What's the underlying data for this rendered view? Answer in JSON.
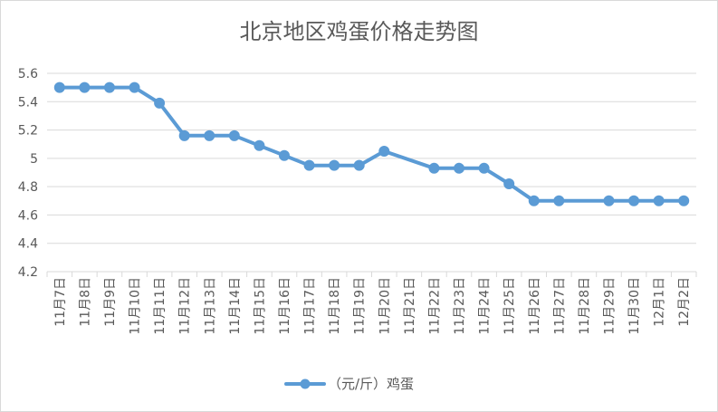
{
  "chart_data": {
    "type": "line",
    "title": "北京地区鸡蛋价格走势图",
    "xlabel": "",
    "ylabel": "",
    "ylim": [
      4.2,
      5.6
    ],
    "yticks": [
      "4.2",
      "4.4",
      "4.6",
      "4.8",
      "5",
      "5.2",
      "5.4",
      "5.6"
    ],
    "grid": true,
    "legend_position": "bottom",
    "categories": [
      "11月7日",
      "11月8日",
      "11月9日",
      "11月10日",
      "11月11日",
      "11月12日",
      "11月13日",
      "11月14日",
      "11月15日",
      "11月16日",
      "11月17日",
      "11月18日",
      "11月19日",
      "11月20日",
      "11月21日",
      "11月22日",
      "11月23日",
      "11月24日",
      "11月25日",
      "11月26日",
      "11月27日",
      "11月28日",
      "11月29日",
      "11月30日",
      "12月1日",
      "12月2日"
    ],
    "series": [
      {
        "name": "（元/斤）鸡蛋",
        "color": "#5b9bd5",
        "values": [
          5.5,
          5.5,
          5.5,
          5.5,
          5.39,
          5.16,
          5.16,
          5.16,
          5.09,
          5.02,
          4.95,
          4.95,
          4.95,
          5.05,
          null,
          4.93,
          4.93,
          4.93,
          4.82,
          4.7,
          4.7,
          null,
          4.7,
          4.7,
          4.7,
          4.7
        ]
      }
    ]
  }
}
